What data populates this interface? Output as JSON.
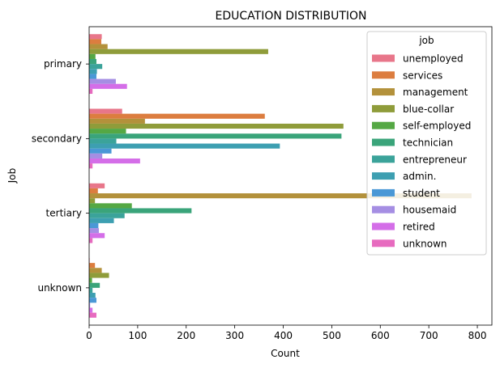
{
  "chart_data": {
    "type": "bar",
    "orientation": "horizontal",
    "title": "EDUCATION DISTRIBUTION",
    "xlabel": "Count",
    "ylabel": "Job",
    "xlim": [
      0,
      830
    ],
    "xticks": [
      0,
      100,
      200,
      300,
      400,
      500,
      600,
      700,
      800
    ],
    "categories": [
      "primary",
      "secondary",
      "tertiary",
      "unknown"
    ],
    "grid": false,
    "legend": {
      "title": "job",
      "position": "top-right"
    },
    "series": [
      {
        "name": "unemployed",
        "color": "#e8768a",
        "values": [
          26,
          68,
          32,
          1
        ]
      },
      {
        "name": "services",
        "color": "#dc7d3f",
        "values": [
          25,
          362,
          18,
          12
        ]
      },
      {
        "name": "management",
        "color": "#b3913b",
        "values": [
          38,
          115,
          788,
          26
        ]
      },
      {
        "name": "blue-collar",
        "color": "#8f9c3a",
        "values": [
          369,
          524,
          12,
          41
        ]
      },
      {
        "name": "self-employed",
        "color": "#55a844",
        "values": [
          13,
          76,
          88,
          6
        ]
      },
      {
        "name": "technician",
        "color": "#3aa47a",
        "values": [
          15,
          520,
          211,
          22
        ]
      },
      {
        "name": "entrepreneur",
        "color": "#3ba39a",
        "values": [
          27,
          56,
          73,
          7
        ]
      },
      {
        "name": "admin.",
        "color": "#3d9fb1",
        "values": [
          16,
          393,
          51,
          13
        ]
      },
      {
        "name": "student",
        "color": "#4a98d6",
        "values": [
          15,
          46,
          19,
          15
        ]
      },
      {
        "name": "housemaid",
        "color": "#a58ee3",
        "values": [
          55,
          27,
          20,
          2
        ]
      },
      {
        "name": "retired",
        "color": "#d46ee8",
        "values": [
          78,
          105,
          32,
          7
        ]
      },
      {
        "name": "unknown",
        "color": "#e76bbf",
        "values": [
          7,
          7,
          7,
          15
        ]
      }
    ]
  }
}
